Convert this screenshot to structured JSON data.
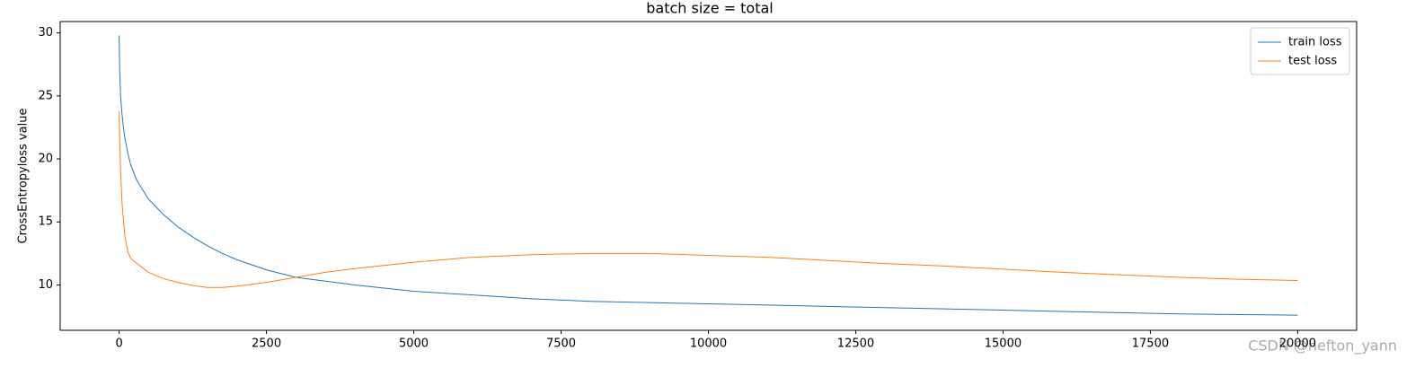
{
  "chart_data": {
    "type": "line",
    "title": "batch size = total",
    "y_label": "CrossEntropyloss value",
    "x": [
      0,
      10,
      25,
      50,
      75,
      100,
      150,
      200,
      300,
      500,
      750,
      1000,
      1250,
      1500,
      1750,
      2000,
      2500,
      3000,
      3500,
      4000,
      5000,
      6000,
      7000,
      8000,
      9000,
      10000,
      11000,
      12000,
      13000,
      14000,
      15000,
      16000,
      17000,
      18000,
      19000,
      20000
    ],
    "series": [
      {
        "name": "train loss",
        "color": "#1f77b4",
        "values": [
          29.8,
          27,
          25,
          23.5,
          22.4,
          21.6,
          20.4,
          19.5,
          18.3,
          16.8,
          15.6,
          14.6,
          13.8,
          13.1,
          12.5,
          12.0,
          11.2,
          10.6,
          10.3,
          10.0,
          9.5,
          9.2,
          8.9,
          8.7,
          8.6,
          8.5,
          8.4,
          8.3,
          8.2,
          8.1,
          8.0,
          7.9,
          7.8,
          7.7,
          7.65,
          7.6
        ]
      },
      {
        "name": "test loss",
        "color": "#ff7f0e",
        "values": [
          23.8,
          21.5,
          19.0,
          16.5,
          15.0,
          13.8,
          12.6,
          12.1,
          11.7,
          11.0,
          10.5,
          10.2,
          9.95,
          9.8,
          9.8,
          9.9,
          10.2,
          10.6,
          11.0,
          11.3,
          11.8,
          12.2,
          12.4,
          12.5,
          12.5,
          12.35,
          12.2,
          11.95,
          11.7,
          11.5,
          11.25,
          11.0,
          10.8,
          10.6,
          10.45,
          10.35
        ]
      }
    ],
    "xlim": [
      -1000,
      21000
    ],
    "xticks": [
      0,
      2500,
      5000,
      7500,
      10000,
      12500,
      15000,
      17500,
      20000
    ],
    "ylim": [
      6.4,
      30.9
    ],
    "yticks": [
      10,
      15,
      20,
      25,
      30
    ],
    "grid": false,
    "legend": "upper right",
    "watermark": "CSDN @hefton_yann"
  }
}
